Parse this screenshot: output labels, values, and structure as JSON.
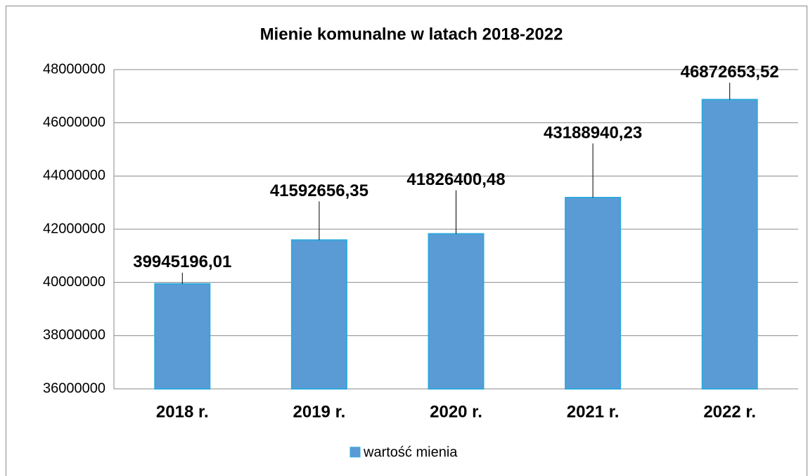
{
  "chart_data": {
    "type": "bar",
    "title": "Mienie komunalne w latach 2018-2022",
    "categories": [
      "2018 r.",
      "2019 r.",
      "2020 r.",
      "2021 r.",
      "2022 r."
    ],
    "series": [
      {
        "name": "wartość mienia",
        "color": "#5b9bd5",
        "values": [
          39945196.01,
          41592656.35,
          41826400.48,
          43188940.23,
          46872653.52
        ],
        "value_labels": [
          "39945196,01",
          "41592656,35",
          "41826400,48",
          "43188940,23",
          "46872653,52"
        ]
      }
    ],
    "ylim": [
      36000000,
      48000000
    ],
    "yticks": [
      36000000,
      38000000,
      40000000,
      42000000,
      44000000,
      46000000,
      48000000
    ],
    "grid": true,
    "legend": "bottom"
  }
}
